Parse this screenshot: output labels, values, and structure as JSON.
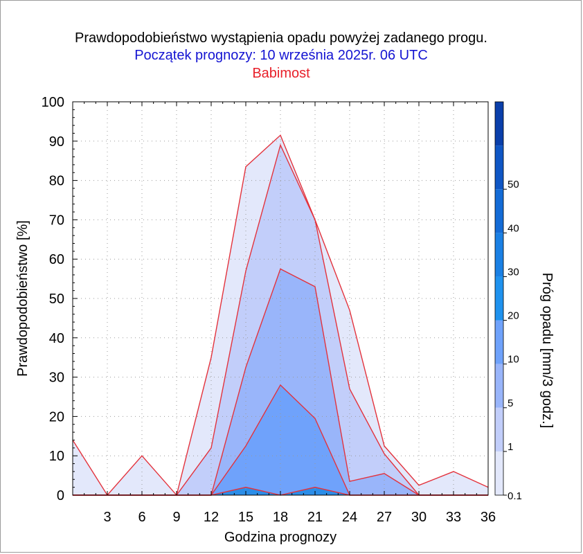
{
  "chart_data": {
    "type": "area",
    "title": "Prawdopodobieństwo wystąpienia opadu powyżej zadanego progu.",
    "subtitle": "Początek prognozy: 10 września 2025r. 06 UTC",
    "location": "Babimost",
    "xlabel": "Godzina prognozy",
    "ylabel": "Prawdopodobieństwo [%]",
    "colorbar_label": "Próg opadu [mm/3 godz.]",
    "x": [
      0,
      3,
      6,
      9,
      12,
      15,
      18,
      21,
      24,
      27,
      30,
      33,
      36
    ],
    "xticks": [
      3,
      6,
      9,
      12,
      15,
      18,
      21,
      24,
      27,
      30,
      33,
      36
    ],
    "xlim": [
      0,
      36
    ],
    "yticks": [
      0,
      10,
      20,
      30,
      40,
      50,
      60,
      70,
      80,
      90,
      100
    ],
    "ylim": [
      0,
      100
    ],
    "grid": true,
    "series": [
      {
        "name": "0.1",
        "color": "#e3e8fb",
        "values": [
          14,
          0,
          10,
          0,
          35,
          83.5,
          91.5,
          70,
          47,
          12.5,
          2.5,
          6,
          2
        ]
      },
      {
        "name": "1",
        "color": "#c2cefa",
        "values": [
          0,
          0,
          0,
          0,
          12,
          57,
          89,
          70,
          27,
          10.5,
          0,
          0,
          0
        ]
      },
      {
        "name": "5",
        "color": "#99b5fa",
        "values": [
          0,
          0,
          0,
          0,
          0,
          32.5,
          57.5,
          53,
          3.5,
          5.5,
          0,
          0,
          0
        ]
      },
      {
        "name": "10",
        "color": "#6fa2fb",
        "values": [
          0,
          0,
          0,
          0,
          0,
          12.5,
          28,
          19.5,
          0,
          0,
          0,
          0,
          0
        ]
      },
      {
        "name": "20",
        "color": "#2b8de8",
        "values": [
          0,
          0,
          0,
          0,
          0,
          2,
          0,
          2,
          0,
          0,
          0,
          0,
          0
        ]
      }
    ],
    "colorbar": {
      "ticks": [
        "0.1",
        "1",
        "5",
        "10",
        "20",
        "30",
        "40",
        "50"
      ],
      "levels": [
        {
          "label": "0.1",
          "color": "#e3e8fb"
        },
        {
          "label": "1",
          "color": "#c2cefa"
        },
        {
          "label": "5",
          "color": "#99b5fa"
        },
        {
          "label": "10",
          "color": "#6fa2fb"
        },
        {
          "label": "20",
          "color": "#1f92ee"
        },
        {
          "label": "30",
          "color": "#1a80e4"
        },
        {
          "label": "40",
          "color": "#146bd6"
        },
        {
          "label": "50",
          "color": "#0f56c4"
        },
        {
          "label": "",
          "color": "#0a3faa"
        }
      ]
    },
    "line_color": "#e3323c"
  }
}
